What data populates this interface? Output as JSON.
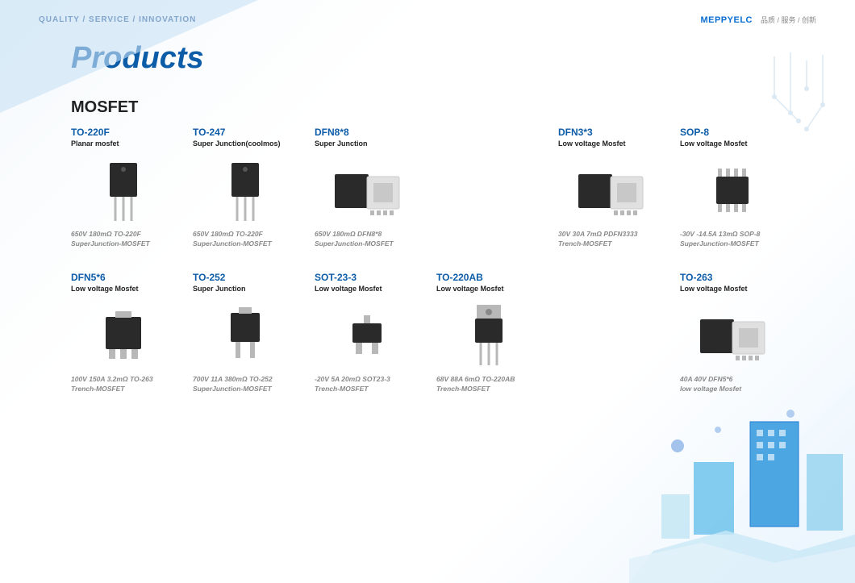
{
  "header": {
    "tagline": "QUALITY / SERVICE / INNOVATION",
    "brand_logo": "MEPPYELC",
    "brand_text": "品质 / 服务 / 创新"
  },
  "title": "Products",
  "section": "MOSFET",
  "colors": {
    "heading": "#0d5ca8",
    "text": "#222222",
    "desc": "#888888",
    "chip_body": "#2a2a2a",
    "chip_pin": "#b8b8b8"
  },
  "products": [
    {
      "title": "TO-220F",
      "subtitle": "Planar mosfet",
      "chip_type": "to220f",
      "desc1": "650V 180mΩ TO-220F",
      "desc2": "SuperJunction-MOSFET"
    },
    {
      "title": "TO-247",
      "subtitle": "Super Junction(coolmos)",
      "chip_type": "to247",
      "desc1": "650V 180mΩ TO-220F",
      "desc2": "SuperJunction-MOSFET"
    },
    {
      "title": "DFN8*8",
      "subtitle": "Super Junction",
      "chip_type": "dfn88",
      "desc1": "650V 180mΩ DFN8*8",
      "desc2": "SuperJunction-MOSFET"
    },
    {
      "title": "DFN3*3",
      "subtitle": "Low voltage Mosfet",
      "chip_type": "dfn33",
      "desc1": "30V 30A 7mΩ PDFN3333",
      "desc2": "Trench-MOSFET"
    },
    {
      "title": "SOP-8",
      "subtitle": "Low voltage Mosfet",
      "chip_type": "sop8",
      "desc1": "-30V -14.5A 13mΩ SOP-8",
      "desc2": "SuperJunction-MOSFET"
    },
    {
      "title": "DFN5*6",
      "subtitle": "Low voltage Mosfet",
      "chip_type": "dfn56",
      "desc1": "100V 150A 3.2mΩ TO-263",
      "desc2": "Trench-MOSFET"
    },
    {
      "title": "TO-252",
      "subtitle": "Super Junction",
      "chip_type": "to252",
      "desc1": "700V 11A 380mΩ TO-252",
      "desc2": "SuperJunction-MOSFET"
    },
    {
      "title": "SOT-23-3",
      "subtitle": "Low voltage Mosfet",
      "chip_type": "sot23",
      "desc1": "-20V 5A 20mΩ SOT23-3",
      "desc2": "Trench-MOSFET"
    },
    {
      "title": "TO-220AB",
      "subtitle": "Low voltage Mosfet",
      "chip_type": "to220ab",
      "desc1": "68V 88A 6mΩ TO-220AB",
      "desc2": "Trench-MOSFET"
    },
    {
      "title": "TO-263",
      "subtitle": "Low voltage Mosfet",
      "chip_type": "to263",
      "desc1": "40A 40V DFN5*6",
      "desc2": "low voltage Mosfet"
    }
  ]
}
